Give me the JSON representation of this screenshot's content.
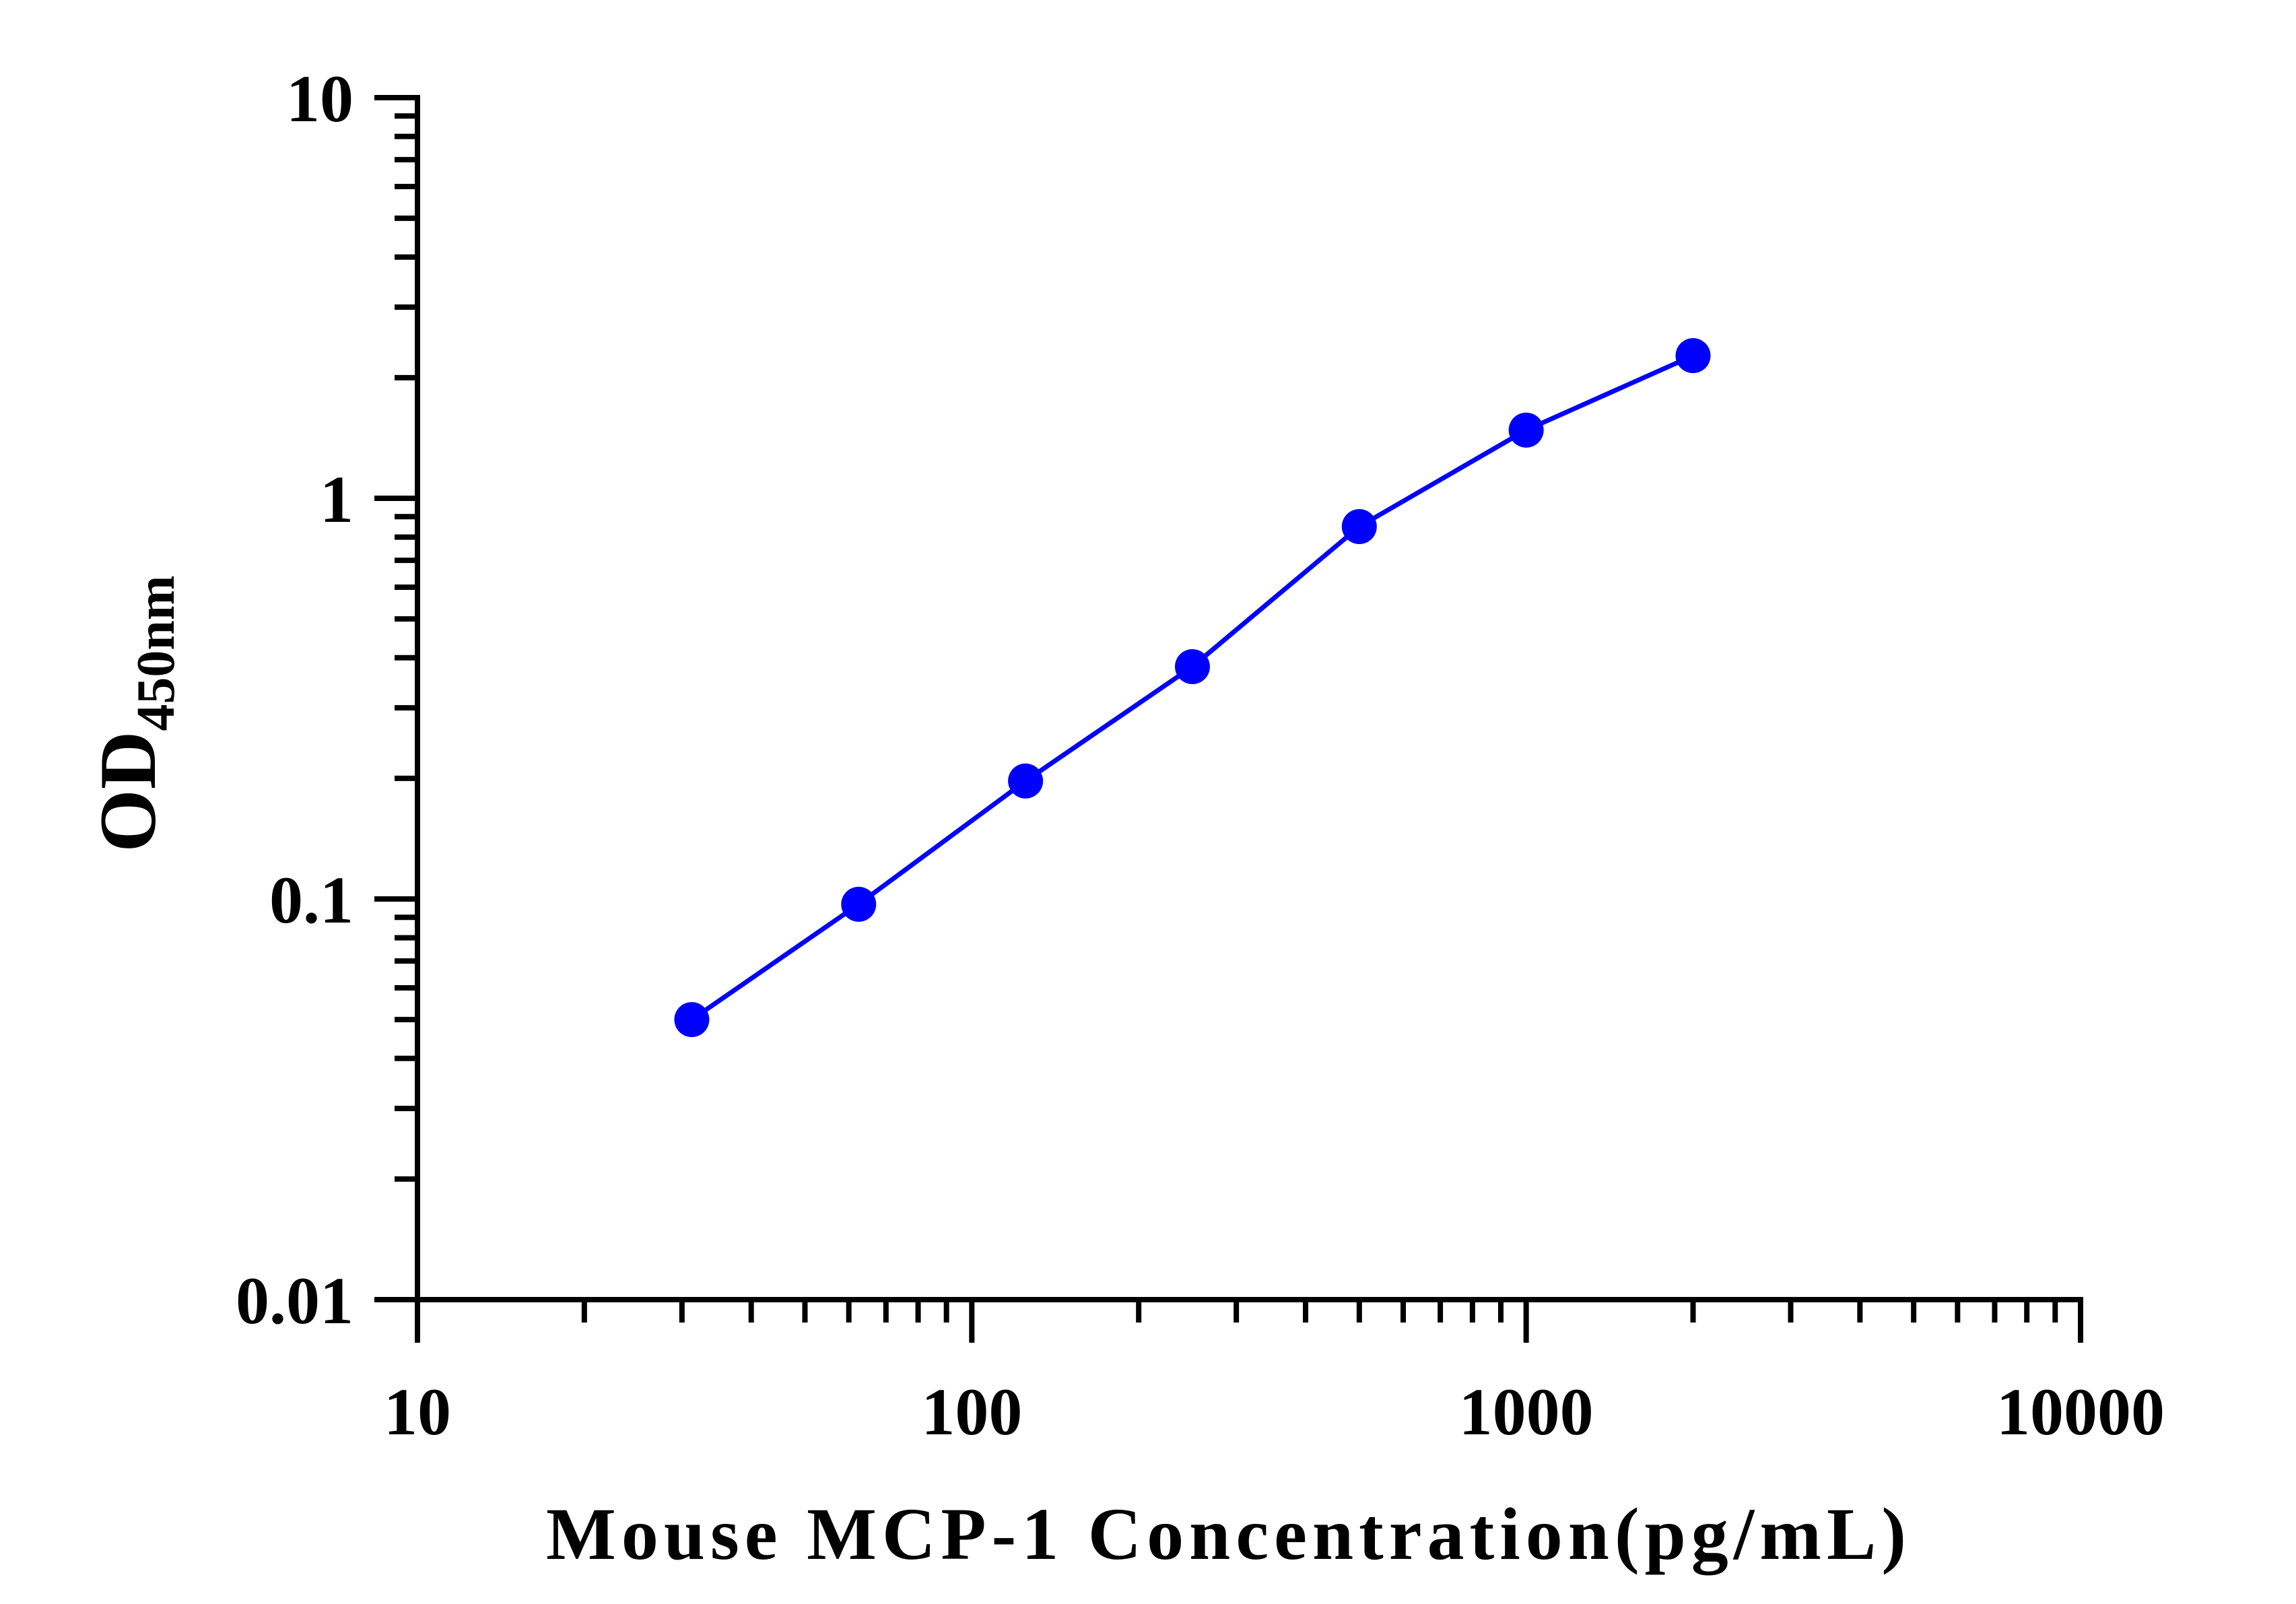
{
  "chart_data": {
    "type": "line",
    "x_scale": "log",
    "y_scale": "log",
    "xlim": [
      10,
      10000
    ],
    "ylim": [
      0.01,
      10
    ],
    "xlabel": "Mouse MCP-1 Concentration(pg/mL)",
    "ylabel": {
      "main": "OD",
      "subscript": "450nm"
    },
    "x_ticks": [
      "10",
      "100",
      "1000",
      "10000"
    ],
    "y_ticks": [
      "0.01",
      "0.1",
      "1",
      "10"
    ],
    "grid": false,
    "series": [
      {
        "color": "#0000ff",
        "x": [
          31.25,
          62.5,
          125,
          250,
          500,
          1000,
          2000
        ],
        "y": [
          0.05,
          0.097,
          0.197,
          0.38,
          0.85,
          1.48,
          2.27
        ]
      }
    ]
  }
}
